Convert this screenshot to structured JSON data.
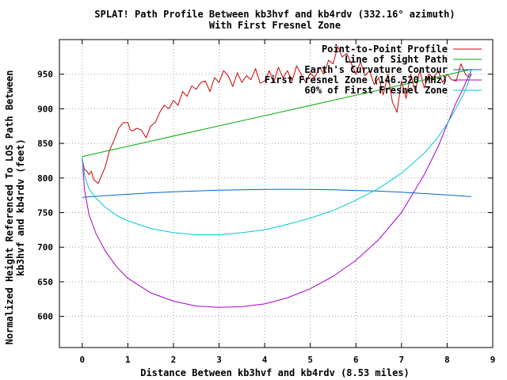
{
  "chart_data": {
    "type": "line",
    "title": "SPLAT! Path Profile Between kb3hvf and kb4rdv (332.16° azimuth)",
    "subtitle": "With First Fresnel Zone",
    "xlabel": "Distance Between kb3hvf and kb4rdv (8.53 miles)",
    "ylabel_line1": "Normalized Height Referenced To LOS Path Between",
    "ylabel_line2": "kb3hvf and kb4rdv (feet)",
    "xlim": [
      -0.5,
      9
    ],
    "ylim": [
      555,
      1000
    ],
    "xticks": [
      0,
      1,
      2,
      3,
      4,
      5,
      6,
      7,
      8,
      9
    ],
    "yticks": [
      600,
      650,
      700,
      750,
      800,
      850,
      900,
      950
    ],
    "grid": true,
    "legend_position": "top-right",
    "series": [
      {
        "name": "Point-to-Point Profile",
        "color": "#cc0000",
        "x": [
          0,
          0.05,
          0.1,
          0.15,
          0.2,
          0.25,
          0.3,
          0.35,
          0.4,
          0.5,
          0.6,
          0.7,
          0.8,
          0.9,
          1.0,
          1.05,
          1.1,
          1.2,
          1.3,
          1.4,
          1.5,
          1.6,
          1.7,
          1.8,
          1.9,
          2.0,
          2.1,
          2.2,
          2.3,
          2.4,
          2.5,
          2.6,
          2.7,
          2.8,
          2.9,
          3.0,
          3.1,
          3.2,
          3.3,
          3.4,
          3.5,
          3.6,
          3.7,
          3.8,
          3.9,
          4.0,
          4.1,
          4.2,
          4.3,
          4.4,
          4.5,
          4.6,
          4.7,
          4.8,
          4.9,
          5.0,
          5.1,
          5.2,
          5.3,
          5.4,
          5.5,
          5.6,
          5.7,
          5.8,
          5.9,
          6.0,
          6.1,
          6.2,
          6.3,
          6.4,
          6.5,
          6.6,
          6.7,
          6.8,
          6.9,
          7.0,
          7.1,
          7.2,
          7.3,
          7.4,
          7.5,
          7.6,
          7.7,
          7.8,
          7.9,
          8.0,
          8.1,
          8.2,
          8.3,
          8.4,
          8.5,
          8.53
        ],
        "values": [
          827,
          812,
          810,
          805,
          810,
          798,
          795,
          792,
          800,
          815,
          840,
          855,
          872,
          880,
          880,
          870,
          868,
          872,
          869,
          858,
          875,
          880,
          895,
          905,
          900,
          912,
          905,
          925,
          918,
          933,
          928,
          938,
          940,
          925,
          945,
          938,
          955,
          948,
          932,
          952,
          938,
          948,
          942,
          958,
          937,
          940,
          955,
          938,
          960,
          945,
          955,
          940,
          962,
          950,
          938,
          952,
          945,
          960,
          950,
          970,
          965,
          990,
          975,
          980,
          965,
          950,
          968,
          948,
          955,
          935,
          945,
          920,
          950,
          910,
          895,
          940,
          915,
          950,
          925,
          955,
          930,
          950,
          945,
          955,
          938,
          950,
          942,
          940,
          965,
          950,
          945,
          950
        ]
      },
      {
        "name": "Line of Sight Path",
        "color": "#00aa00",
        "x": [
          0,
          8.53
        ],
        "values": [
          831,
          957
        ]
      },
      {
        "name": "Earth's Curvature Contour",
        "color": "#0066cc",
        "x": [
          0,
          0.5,
          1,
          1.5,
          2,
          2.5,
          3,
          3.5,
          4,
          4.5,
          5,
          5.5,
          6,
          6.5,
          7,
          7.5,
          8,
          8.53
        ],
        "values": [
          772,
          774.5,
          776.5,
          778.5,
          780,
          781.3,
          782.3,
          783,
          783.5,
          783.7,
          783.5,
          783,
          782,
          781,
          779.5,
          777.5,
          775.5,
          773
        ]
      },
      {
        "name": "First Fresnel Zone (146.520 MHz)",
        "color": "#aa00cc",
        "x": [
          0,
          0.05,
          0.15,
          0.3,
          0.5,
          0.75,
          1.0,
          1.5,
          2.0,
          2.5,
          3.0,
          3.5,
          4.0,
          4.5,
          5.0,
          5.5,
          6.0,
          6.5,
          7.0,
          7.5,
          7.8,
          8.0,
          8.2,
          8.35,
          8.45,
          8.5,
          8.53
        ],
        "values": [
          831,
          783,
          747,
          720,
          695,
          672,
          655,
          634,
          622,
          615,
          613,
          614,
          618,
          627,
          640,
          658,
          681,
          711,
          750,
          805,
          845,
          877,
          909,
          929,
          944,
          951,
          957
        ]
      },
      {
        "name": "60% of First Fresnel Zone",
        "color": "#00cccc",
        "x": [
          0,
          0.05,
          0.15,
          0.3,
          0.5,
          0.75,
          1.0,
          1.5,
          2.0,
          2.5,
          3.0,
          3.5,
          4.0,
          4.5,
          5.0,
          5.5,
          6.0,
          6.5,
          7.0,
          7.5,
          7.8,
          8.0,
          8.2,
          8.35,
          8.45,
          8.5,
          8.53
        ],
        "values": [
          831,
          804,
          784,
          771,
          758,
          746,
          738,
          727,
          721,
          718,
          718,
          721,
          725,
          733,
          742,
          753,
          768,
          785,
          807,
          836,
          859,
          878,
          901,
          920,
          935,
          946,
          957
        ]
      }
    ]
  }
}
